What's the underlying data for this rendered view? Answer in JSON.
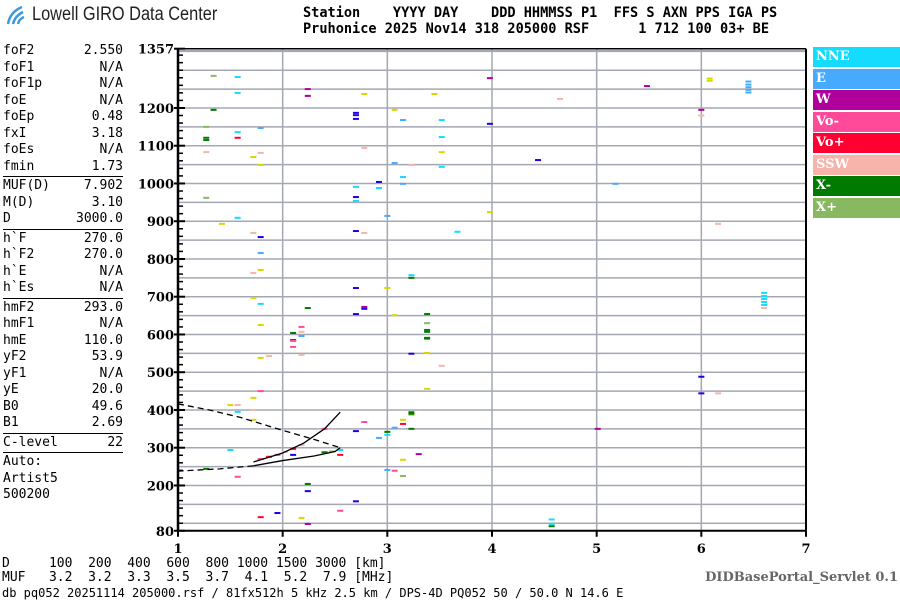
{
  "logo": {
    "text": "Lowell GIRO Data Center",
    "color": "#3a9ad9"
  },
  "header": {
    "line1": "Station    YYYY DAY    DDD HHMMSS P1  FFS S AXN PPS IGA PS",
    "line2": "Pruhonice 2025 Nov14 318 205000 RSF      1 712 100 03+ BE"
  },
  "params": {
    "group1": [
      {
        "label": "foF2",
        "value": "2.550"
      },
      {
        "label": "foF1",
        "value": "N/A"
      },
      {
        "label": "foF1p",
        "value": "N/A"
      },
      {
        "label": "foE",
        "value": "N/A"
      },
      {
        "label": "foEp",
        "value": "0.48"
      },
      {
        "label": "fxI",
        "value": "3.18"
      },
      {
        "label": "foEs",
        "value": "N/A"
      },
      {
        "label": "fmin",
        "value": "1.73"
      }
    ],
    "group2": [
      {
        "label": "MUF(D)",
        "value": "7.902"
      },
      {
        "label": "M(D)",
        "value": "3.10"
      },
      {
        "label": "D",
        "value": "3000.0"
      }
    ],
    "group3": [
      {
        "label": "h`F",
        "value": "270.0"
      },
      {
        "label": "h`F2",
        "value": "270.0"
      },
      {
        "label": "h`E",
        "value": "N/A"
      },
      {
        "label": "h`Es",
        "value": "N/A"
      }
    ],
    "group4": [
      {
        "label": "hmF2",
        "value": "293.0"
      },
      {
        "label": "hmF1",
        "value": "N/A"
      },
      {
        "label": "hmE",
        "value": "110.0"
      },
      {
        "label": "yF2",
        "value": "53.9"
      },
      {
        "label": "yF1",
        "value": "N/A"
      },
      {
        "label": "yE",
        "value": "20.0"
      },
      {
        "label": "B0",
        "value": "49.6"
      },
      {
        "label": "B1",
        "value": "2.69"
      }
    ],
    "group5": [
      {
        "label": "C-level",
        "value": "22"
      }
    ],
    "auto": [
      "Auto:",
      "Artist5",
      "500200"
    ]
  },
  "legend": [
    {
      "label": "NNE",
      "color": "#14dcff"
    },
    {
      "label": "E",
      "color": "#46aaff"
    },
    {
      "label": "W",
      "color": "#b0009c"
    },
    {
      "label": "Vo-",
      "color": "#ff4a9a"
    },
    {
      "label": "Vo+",
      "color": "#ff0030"
    },
    {
      "label": "SSW",
      "color": "#f7b4aa"
    },
    {
      "label": "X-",
      "color": "#007a00"
    },
    {
      "label": "X+",
      "color": "#88b860"
    }
  ],
  "bottom": {
    "d_row": "D     100  200  400  600  800 1000 1500 3000 [km]",
    "muf_row": "MUF   3.2  3.2  3.3  3.5  3.7  4.1  5.2  7.9 [MHz]",
    "servlet": "DIDBasePortal_Servlet 0.1",
    "footer": "db pq052 20251114 205000.rsf / 81fx512h 5 kHz 2.5 km / DPS-4D PQ052 50 / 50.0 N 14.6 E"
  },
  "chart_data": {
    "type": "scatter",
    "xlim": [
      1,
      7
    ],
    "ylim": [
      80,
      1357
    ],
    "x_ticks": [
      "1",
      "2",
      "3",
      "4",
      "5",
      "6",
      "7"
    ],
    "y_ticks": [
      "1357",
      "1200",
      "1100",
      "1000",
      "900",
      "800",
      "700",
      "600",
      "500",
      "400",
      "300",
      "200",
      "80"
    ],
    "grid": true,
    "legend_position": "right",
    "extra_colors": {
      "Y": "#d8d800",
      "B": "#2000e0"
    },
    "trace_color": "#000000",
    "traces": [
      {
        "style": "dashed",
        "points": [
          [
            1.0,
            416
          ],
          [
            1.3,
            400
          ],
          [
            1.6,
            380
          ],
          [
            2.0,
            346
          ],
          [
            2.3,
            322
          ],
          [
            2.55,
            300
          ]
        ]
      },
      {
        "style": "solid",
        "points": [
          [
            2.55,
            300
          ],
          [
            2.5,
            290
          ],
          [
            2.3,
            278
          ],
          [
            2.0,
            266
          ],
          [
            1.72,
            252
          ]
        ]
      },
      {
        "style": "dashed",
        "points": [
          [
            1.72,
            252
          ],
          [
            1.4,
            244
          ],
          [
            1.0,
            238
          ]
        ]
      },
      {
        "style": "solid",
        "points": [
          [
            1.72,
            262
          ],
          [
            2.0,
            286
          ],
          [
            2.2,
            312
          ],
          [
            2.4,
            350
          ],
          [
            2.55,
            394
          ]
        ]
      }
    ],
    "echoes": [
      [
        1.34,
        1285,
        "X+"
      ],
      [
        1.57,
        1282,
        "NNE"
      ],
      [
        1.57,
        1240,
        "NNE"
      ],
      [
        2.24,
        1250,
        "W"
      ],
      [
        2.24,
        1232,
        "W"
      ],
      [
        2.78,
        1237,
        "Y"
      ],
      [
        3.45,
        1237,
        "Y"
      ],
      [
        3.98,
        1279,
        "W"
      ],
      [
        1.34,
        1195,
        "X-"
      ],
      [
        2.7,
        1187,
        "B"
      ],
      [
        2.7,
        1181,
        "B"
      ],
      [
        2.7,
        1171,
        "B"
      ],
      [
        3.07,
        1195,
        "Y"
      ],
      [
        3.15,
        1168,
        "E"
      ],
      [
        3.52,
        1168,
        "NNE"
      ],
      [
        3.98,
        1158,
        "B"
      ],
      [
        1.27,
        1150,
        "X+"
      ],
      [
        1.79,
        1147,
        "E"
      ],
      [
        1.57,
        1136,
        "NNE"
      ],
      [
        1.57,
        1121,
        "Vo+"
      ],
      [
        1.27,
        1121,
        "X-"
      ],
      [
        1.27,
        1115,
        "X-"
      ],
      [
        3.52,
        1123,
        "NNE"
      ],
      [
        1.27,
        1083,
        "SSW"
      ],
      [
        1.79,
        1081,
        "SSW"
      ],
      [
        1.72,
        1070,
        "Y"
      ],
      [
        2.78,
        1094,
        "SSW"
      ],
      [
        3.52,
        1083,
        "Y"
      ],
      [
        3.07,
        1054,
        "E"
      ],
      [
        3.23,
        1049,
        "SSW"
      ],
      [
        1.79,
        1049,
        "Y"
      ],
      [
        3.52,
        1044,
        "NNE"
      ],
      [
        3.15,
        1017,
        "NNE"
      ],
      [
        2.92,
        1004,
        "B"
      ],
      [
        3.15,
        999,
        "E"
      ],
      [
        2.7,
        991,
        "NNE"
      ],
      [
        2.7,
        964,
        "B"
      ],
      [
        2.7,
        954,
        "NNE"
      ],
      [
        2.92,
        988,
        "NNE"
      ],
      [
        1.27,
        962,
        "X+"
      ],
      [
        1.57,
        909,
        "NNE"
      ],
      [
        3.0,
        914,
        "E"
      ],
      [
        3.98,
        924,
        "Y"
      ],
      [
        1.42,
        893,
        "Y"
      ],
      [
        1.72,
        869,
        "SSW"
      ],
      [
        1.79,
        858,
        "B"
      ],
      [
        2.7,
        874,
        "B"
      ],
      [
        2.78,
        869,
        "SSW"
      ],
      [
        3.67,
        872,
        "NNE"
      ],
      [
        1.79,
        816,
        "E"
      ],
      [
        1.72,
        763,
        "SSW"
      ],
      [
        1.79,
        771,
        "Y"
      ],
      [
        3.23,
        757,
        "NNE"
      ],
      [
        3.23,
        750,
        "X-"
      ],
      [
        2.7,
        723,
        "B"
      ],
      [
        3.0,
        723,
        "Y"
      ],
      [
        1.72,
        697,
        "Y"
      ],
      [
        1.79,
        681,
        "NNE"
      ],
      [
        2.24,
        670,
        "X-"
      ],
      [
        2.78,
        673,
        "W"
      ],
      [
        2.78,
        668,
        "B"
      ],
      [
        2.7,
        654,
        "B"
      ],
      [
        3.07,
        651,
        "Y"
      ],
      [
        3.38,
        654,
        "X-"
      ],
      [
        3.38,
        630,
        "X+"
      ],
      [
        3.38,
        612,
        "X-"
      ],
      [
        3.38,
        607,
        "X-"
      ],
      [
        3.38,
        591,
        "X-"
      ],
      [
        3.38,
        589,
        "X-"
      ],
      [
        1.79,
        625,
        "Y"
      ],
      [
        2.18,
        620,
        "Vo-"
      ],
      [
        2.18,
        607,
        "SSW"
      ],
      [
        2.18,
        596,
        "E"
      ],
      [
        2.1,
        604,
        "X-"
      ],
      [
        2.1,
        585,
        "B"
      ],
      [
        2.1,
        583,
        "Vo-"
      ],
      [
        2.1,
        567,
        "Vo-"
      ],
      [
        2.18,
        546,
        "SSW"
      ],
      [
        3.23,
        549,
        "B"
      ],
      [
        3.38,
        551,
        "Y"
      ],
      [
        1.79,
        538,
        "Y"
      ],
      [
        1.87,
        543,
        "SSW"
      ],
      [
        3.52,
        517,
        "SSW"
      ],
      [
        3.38,
        456,
        "Y"
      ],
      [
        1.79,
        450,
        "Vo-"
      ],
      [
        1.72,
        432,
        "Y"
      ],
      [
        1.5,
        413,
        "Y"
      ],
      [
        1.57,
        413,
        "SSW"
      ],
      [
        1.57,
        395,
        "NNE"
      ],
      [
        1.72,
        400,
        "SSW"
      ],
      [
        1.72,
        374,
        "Y"
      ],
      [
        2.78,
        368,
        "Vo-"
      ],
      [
        3.23,
        387,
        "Y"
      ],
      [
        3.23,
        394,
        "X-"
      ],
      [
        3.23,
        390,
        "X-"
      ],
      [
        3.23,
        350,
        "X-"
      ],
      [
        3.15,
        374,
        "Y"
      ],
      [
        3.15,
        363,
        "Vo+"
      ],
      [
        3.07,
        353,
        "E"
      ],
      [
        3.0,
        342,
        "X-"
      ],
      [
        3.0,
        334,
        "NNE"
      ],
      [
        2.92,
        326,
        "E"
      ],
      [
        2.7,
        344,
        "B"
      ],
      [
        2.4,
        350,
        "Vo-"
      ],
      [
        1.5,
        294,
        "NNE"
      ],
      [
        2.4,
        288,
        "X-"
      ],
      [
        2.47,
        290,
        "X+"
      ],
      [
        2.55,
        294,
        "NNE"
      ],
      [
        2.1,
        297,
        "Vo+"
      ],
      [
        2.18,
        307,
        "SSW"
      ],
      [
        2.02,
        289,
        "SSW"
      ],
      [
        1.95,
        281,
        "Vo-"
      ],
      [
        1.87,
        276,
        "Vo+"
      ],
      [
        1.79,
        270,
        "Vo-"
      ],
      [
        2.1,
        281,
        "B"
      ],
      [
        2.55,
        281,
        "Vo+"
      ],
      [
        3.3,
        283,
        "W"
      ],
      [
        3.15,
        268,
        "Y"
      ],
      [
        1.27,
        244,
        "X-"
      ],
      [
        1.57,
        223,
        "Vo-"
      ],
      [
        3.0,
        241,
        "E"
      ],
      [
        3.07,
        239,
        "Vo-"
      ],
      [
        3.15,
        225,
        "X+"
      ],
      [
        2.24,
        204,
        "X-"
      ],
      [
        2.24,
        185,
        "B"
      ],
      [
        2.7,
        158,
        "B"
      ],
      [
        1.95,
        127,
        "B"
      ],
      [
        1.79,
        116,
        "Vo+"
      ],
      [
        2.18,
        114,
        "Y"
      ],
      [
        2.24,
        98,
        "W"
      ],
      [
        2.55,
        133,
        "Vo-"
      ],
      [
        6.45,
        1270,
        "E"
      ],
      [
        6.45,
        1262,
        "E"
      ],
      [
        6.45,
        1255,
        "E"
      ],
      [
        6.45,
        1248,
        "E"
      ],
      [
        6.45,
        1241,
        "E"
      ],
      [
        6.08,
        1278,
        "Y"
      ],
      [
        6.08,
        1272,
        "Y"
      ],
      [
        5.48,
        1258,
        "W"
      ],
      [
        4.65,
        1224,
        "SSW"
      ],
      [
        6.0,
        1195,
        "W"
      ],
      [
        6.0,
        1180,
        "SSW"
      ],
      [
        4.44,
        1062,
        "B"
      ],
      [
        5.18,
        999,
        "E"
      ],
      [
        6.16,
        893,
        "SSW"
      ],
      [
        6.6,
        710,
        "NNE"
      ],
      [
        6.6,
        702,
        "NNE"
      ],
      [
        6.6,
        694,
        "NNE"
      ],
      [
        6.6,
        686,
        "NNE"
      ],
      [
        6.6,
        678,
        "NNE"
      ],
      [
        6.6,
        670,
        "SSW"
      ],
      [
        6.0,
        488,
        "B"
      ],
      [
        6.0,
        444,
        "B"
      ],
      [
        6.16,
        444,
        "SSW"
      ],
      [
        5.01,
        350,
        "W"
      ],
      [
        4.57,
        110,
        "NNE"
      ],
      [
        4.57,
        98,
        "NNE"
      ],
      [
        4.57,
        92,
        "X-"
      ]
    ]
  }
}
